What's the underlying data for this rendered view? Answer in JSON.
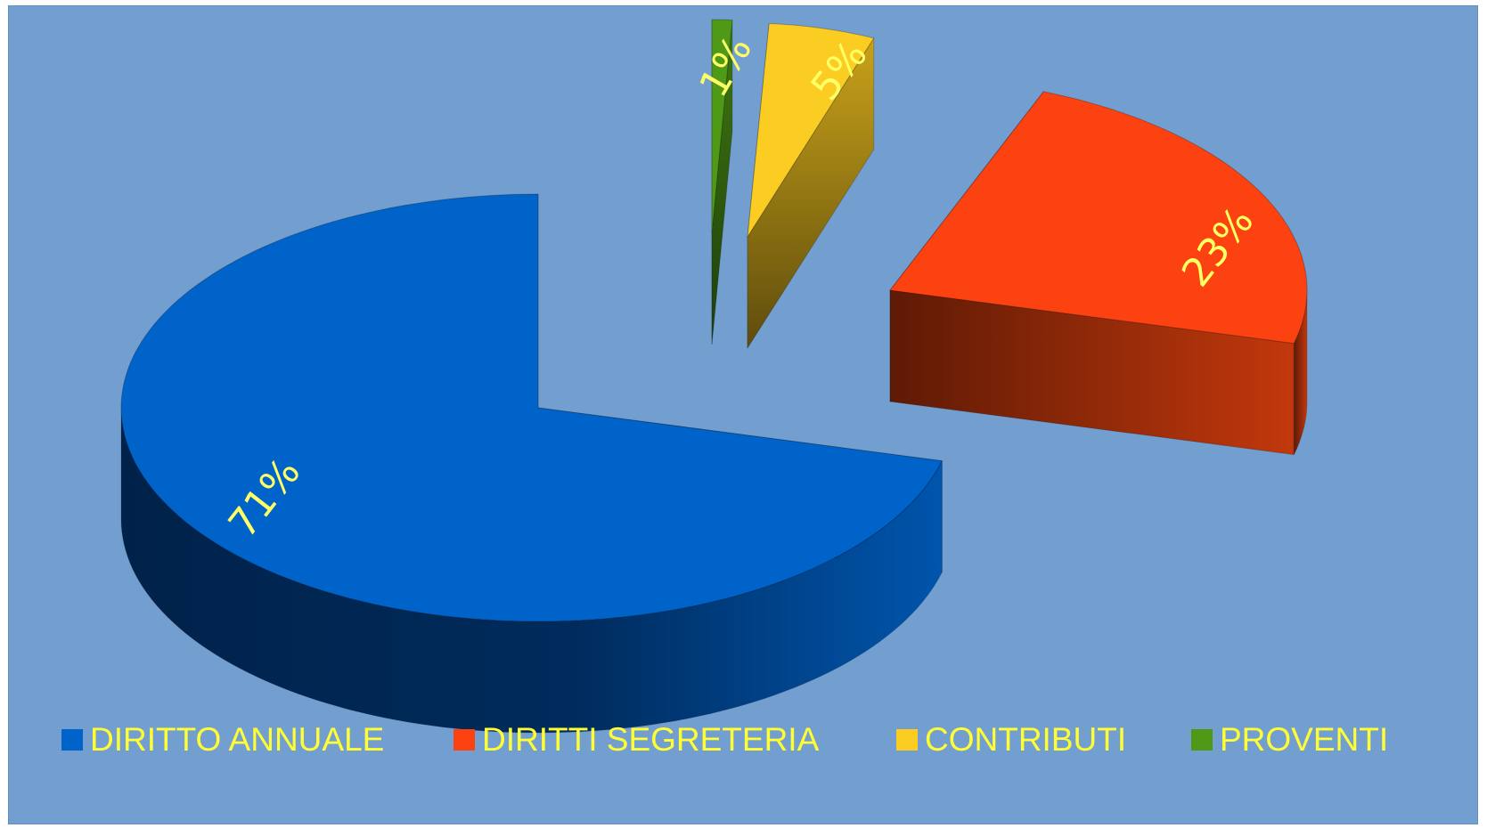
{
  "chart_data": {
    "type": "pie",
    "style": "3d-exploded",
    "categories": [
      "DIRITTO ANNUALE",
      "DIRITTI SEGRETERIA",
      "CONTRIBUTI",
      "PROVENTI"
    ],
    "values": [
      71,
      23,
      5,
      1
    ],
    "value_labels": [
      "71%",
      "23%",
      "5%",
      "1%"
    ],
    "colors": [
      "#0063c9",
      "#fb4210",
      "#fbcd23",
      "#4e9a16"
    ],
    "background_color": "#739fd0",
    "title": "",
    "legend_position": "bottom",
    "label_color": "#ffff66"
  }
}
